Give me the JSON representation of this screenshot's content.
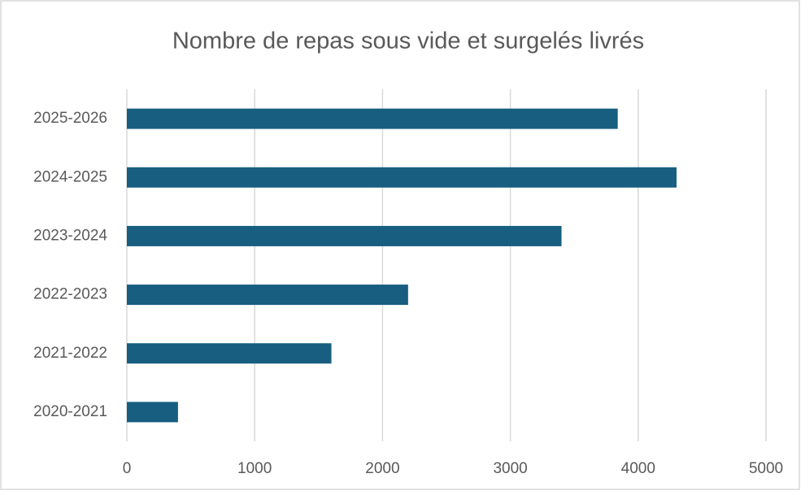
{
  "chart_data": {
    "type": "bar",
    "orientation": "horizontal",
    "title": "Nombre de repas sous vide et surgelés livrés",
    "categories": [
      "2020-2021",
      "2021-2022",
      "2022-2023",
      "2023-2024",
      "2024-2025",
      "2025-2026"
    ],
    "values": [
      400,
      1600,
      2200,
      3400,
      4300,
      3840
    ],
    "color": "#175e80",
    "xlim": [
      0,
      5000
    ],
    "xticks": [
      0,
      1000,
      2000,
      3000,
      4000,
      5000
    ],
    "grid": true
  }
}
